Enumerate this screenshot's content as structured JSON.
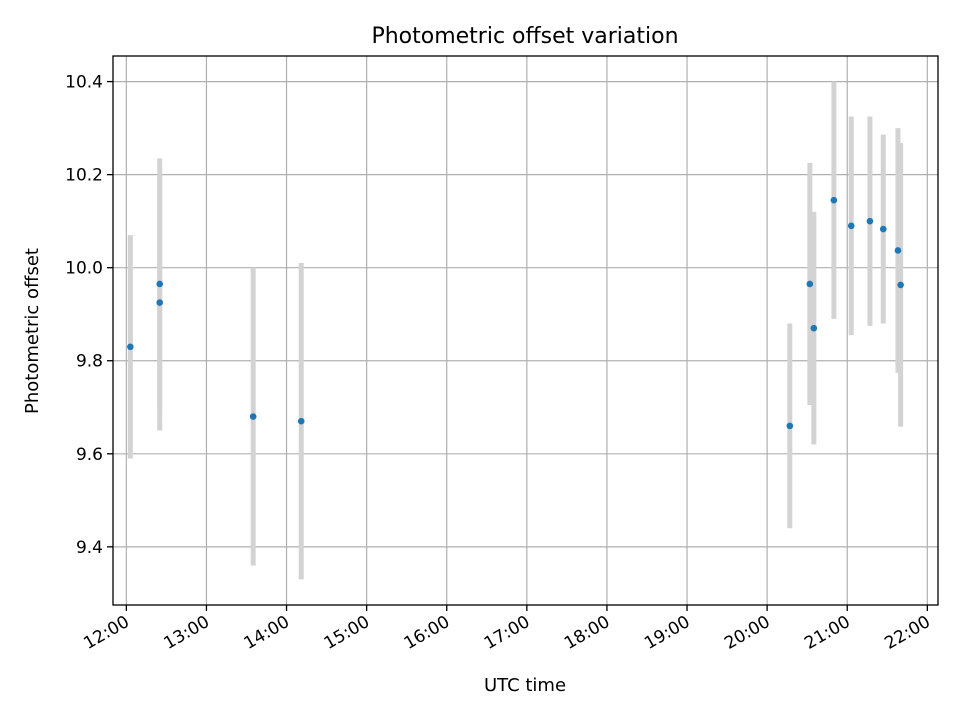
{
  "chart_data": {
    "type": "scatter",
    "title": "Photometric offset variation",
    "xlabel": "UTC time",
    "ylabel": "Photometric offset",
    "xlim": [
      "11:50",
      "22:08"
    ],
    "ylim": [
      9.275,
      10.455
    ],
    "grid": true,
    "x_ticks": [
      "12:00",
      "13:00",
      "14:00",
      "15:00",
      "16:00",
      "17:00",
      "18:00",
      "19:00",
      "20:00",
      "21:00",
      "22:00"
    ],
    "y_ticks": [
      9.4,
      9.6,
      9.8,
      10.0,
      10.2,
      10.4
    ],
    "y_tick_labels": [
      "9.4",
      "9.6",
      "9.8",
      "10.0",
      "10.2",
      "10.4"
    ],
    "colors": {
      "points": "#1f77b4",
      "error_bars": "#d3d3d3",
      "grid": "#b0b0b0"
    },
    "points": [
      {
        "x": "12:03",
        "y": 9.83,
        "y_err": 0.24
      },
      {
        "x": "12:25",
        "y": 9.925,
        "y_err": 0.275
      },
      {
        "x": "12:25",
        "y": 9.965,
        "y_err": 0.27
      },
      {
        "x": "13:35",
        "y": 9.68,
        "y_err": 0.32
      },
      {
        "x": "14:11",
        "y": 9.67,
        "y_err": 0.34
      },
      {
        "x": "20:17",
        "y": 9.66,
        "y_err": 0.22
      },
      {
        "x": "20:32",
        "y": 9.965,
        "y_err": 0.26
      },
      {
        "x": "20:35",
        "y": 9.87,
        "y_err": 0.25
      },
      {
        "x": "20:50",
        "y": 10.145,
        "y_err": 0.255
      },
      {
        "x": "21:03",
        "y": 10.09,
        "y_err": 0.235
      },
      {
        "x": "21:17",
        "y": 10.1,
        "y_err": 0.225
      },
      {
        "x": "21:27",
        "y": 10.083,
        "y_err": 0.203
      },
      {
        "x": "21:38",
        "y": 10.037,
        "y_err": 0.263
      },
      {
        "x": "21:40",
        "y": 9.963,
        "y_err": 0.305
      }
    ]
  }
}
